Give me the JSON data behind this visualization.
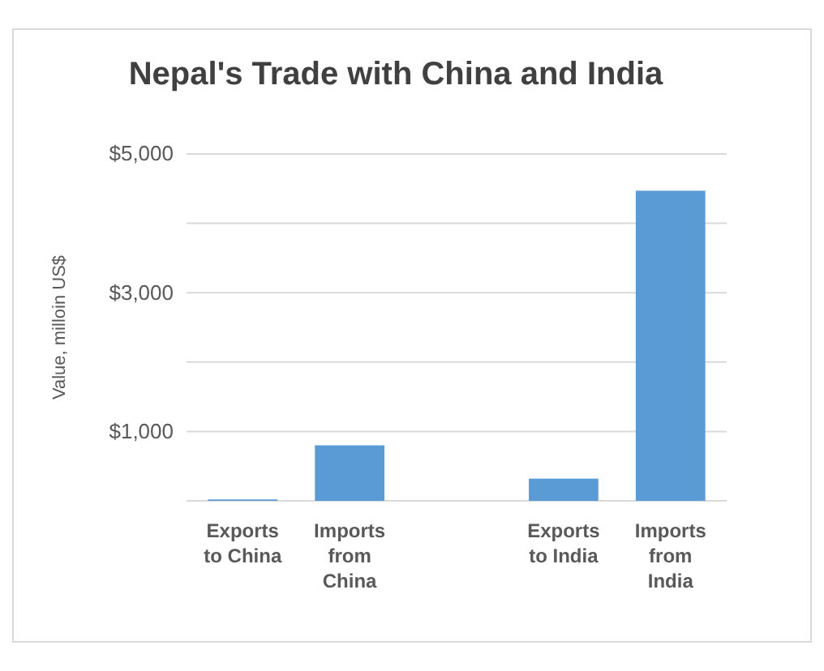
{
  "chart_data": {
    "type": "bar",
    "title": "Nepal's Trade with China and India",
    "ylabel": "Value, milloin US$",
    "categories": [
      "Exports to China",
      "Imports from China",
      null,
      "Exports to India",
      "Imports from India"
    ],
    "values": [
      20,
      800,
      null,
      320,
      4470
    ],
    "color": "#5b9bd5",
    "ylim": [
      0,
      5000
    ],
    "yticks": [
      {
        "value": 0,
        "label": null
      },
      {
        "value": 1000,
        "label": "$1,000"
      },
      {
        "value": 2000,
        "label": null
      },
      {
        "value": 3000,
        "label": "$3,000"
      },
      {
        "value": 4000,
        "label": null
      },
      {
        "value": 5000,
        "label": "$5,000"
      }
    ],
    "grid": "y"
  }
}
